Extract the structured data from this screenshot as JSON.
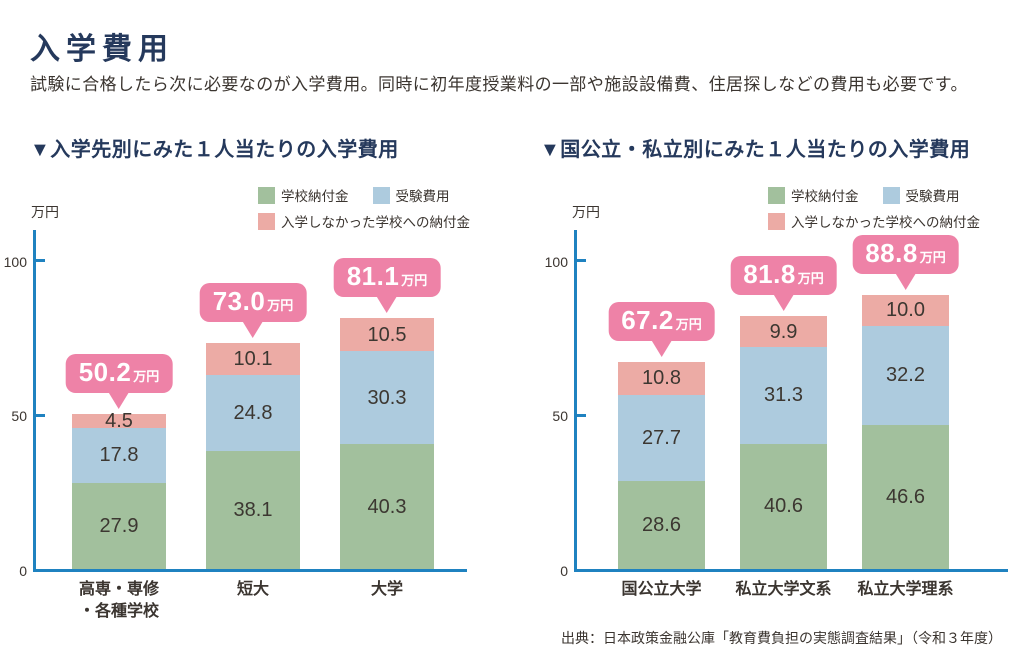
{
  "page": {
    "title": "入学費用",
    "subtitle": "試験に合格したら次に必要なのが入学費用。同時に初年度授業料の一部や施設設備費、住居探しなどの費用も必要です。",
    "source": "出典：日本政策金融公庫「教育費負担の実態調査結果」（令和３年度）"
  },
  "colors": {
    "heading_navy": "#25395c",
    "body_text": "#3b3530",
    "axis_blue": "#1f82c0",
    "series_green": "#a2c09d",
    "series_blue": "#adcbde",
    "series_pink": "#ecaba5",
    "callout_pink": "#ee82a7",
    "callout_text": "#ffffff"
  },
  "chart_data": [
    {
      "type": "bar",
      "stacked": true,
      "title": "▼入学先別にみた１人当たりの入学費用",
      "ylabel": "万円",
      "ylim": [
        0,
        110
      ],
      "yticks": [
        100,
        50,
        0
      ],
      "grid": false,
      "legend_position": "top-right",
      "categories": [
        "高専・専修・各種学校",
        "短大",
        "大学"
      ],
      "category_lines": [
        [
          "高専・専修",
          "・各種学校"
        ],
        [
          "短大"
        ],
        [
          "大学"
        ]
      ],
      "series": [
        {
          "key": "school_payment",
          "name": "学校納付金",
          "color": "#a2c09d",
          "values": [
            27.9,
            38.1,
            40.3
          ]
        },
        {
          "key": "exam_cost",
          "name": "受験費用",
          "color": "#adcbde",
          "values": [
            17.8,
            24.8,
            30.3
          ]
        },
        {
          "key": "declined_school_payment",
          "name": "入学しなかった学校への納付金",
          "color": "#ecaba5",
          "values": [
            4.5,
            10.1,
            10.5
          ]
        }
      ],
      "totals": [
        {
          "value": "50.2",
          "unit": "万円"
        },
        {
          "value": "73.0",
          "unit": "万円"
        },
        {
          "value": "81.1",
          "unit": "万円"
        }
      ]
    },
    {
      "type": "bar",
      "stacked": true,
      "title": "▼国公立・私立別にみた１人当たりの入学費用",
      "ylabel": "万円",
      "ylim": [
        0,
        110
      ],
      "yticks": [
        100,
        50,
        0
      ],
      "grid": false,
      "legend_position": "top-right",
      "categories": [
        "国公立大学",
        "私立大学文系",
        "私立大学理系"
      ],
      "category_lines": [
        [
          "国公立大学"
        ],
        [
          "私立大学文系"
        ],
        [
          "私立大学理系"
        ]
      ],
      "series": [
        {
          "key": "school_payment",
          "name": "学校納付金",
          "color": "#a2c09d",
          "values": [
            28.6,
            40.6,
            46.6
          ]
        },
        {
          "key": "exam_cost",
          "name": "受験費用",
          "color": "#adcbde",
          "values": [
            27.7,
            31.3,
            32.2
          ]
        },
        {
          "key": "declined_school_payment",
          "name": "入学しなかった学校への納付金",
          "color": "#ecaba5",
          "values": [
            10.8,
            9.9,
            10.0
          ]
        }
      ],
      "totals": [
        {
          "value": "67.2",
          "unit": "万円"
        },
        {
          "value": "81.8",
          "unit": "万円"
        },
        {
          "value": "88.8",
          "unit": "万円"
        }
      ]
    }
  ]
}
